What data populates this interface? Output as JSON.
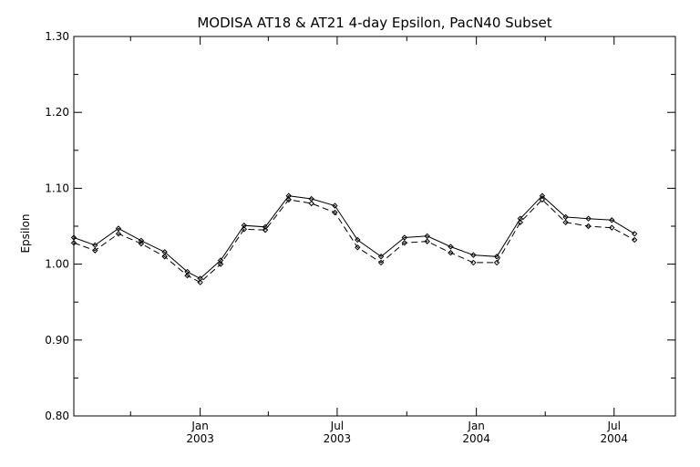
{
  "chart_data": {
    "type": "line",
    "title": "MODISA AT18 & AT21 4-day Epsilon, PacN40 Subset",
    "xlabel": "",
    "ylabel": "Epsilon",
    "xlim": [
      "2002-07-18",
      "2004-09-20"
    ],
    "ylim": [
      0.8,
      1.3
    ],
    "yticks": [
      {
        "value": 0.8,
        "label": "0.80"
      },
      {
        "value": 0.9,
        "label": "0.90"
      },
      {
        "value": 1.0,
        "label": "1.00"
      },
      {
        "value": 1.1,
        "label": "1.10"
      },
      {
        "value": 1.2,
        "label": "1.20"
      },
      {
        "value": 1.3,
        "label": "1.30"
      }
    ],
    "xticks_major": [
      {
        "date": "2003-01-01",
        "label": "Jan",
        "year": "2003"
      },
      {
        "date": "2003-07-01",
        "label": "Jul",
        "year": "2003"
      },
      {
        "date": "2004-01-01",
        "label": "Jan",
        "year": "2004"
      },
      {
        "date": "2004-07-01",
        "label": "Jul",
        "year": "2004"
      }
    ],
    "xticks_minor": [
      "2002-10-01",
      "2003-04-01",
      "2003-10-01",
      "2004-04-01"
    ],
    "grid": false,
    "legend": "none",
    "series": [
      {
        "style": "solid",
        "color": "#000000",
        "points": [
          [
            "2002-07-18",
            1.035
          ],
          [
            "2002-08-15",
            1.025
          ],
          [
            "2002-09-15",
            1.047
          ],
          [
            "2002-10-15",
            1.031
          ],
          [
            "2002-11-15",
            1.016
          ],
          [
            "2002-12-15",
            0.99
          ],
          [
            "2003-01-01",
            0.981
          ],
          [
            "2003-01-28",
            1.005
          ],
          [
            "2003-02-28",
            1.051
          ],
          [
            "2003-03-28",
            1.049
          ],
          [
            "2003-04-28",
            1.09
          ],
          [
            "2003-05-28",
            1.086
          ],
          [
            "2003-06-28",
            1.077
          ],
          [
            "2003-07-28",
            1.032
          ],
          [
            "2003-08-28",
            1.01
          ],
          [
            "2003-09-28",
            1.035
          ],
          [
            "2003-10-28",
            1.037
          ],
          [
            "2003-11-28",
            1.023
          ],
          [
            "2003-12-28",
            1.012
          ],
          [
            "2004-01-28",
            1.01
          ],
          [
            "2004-02-28",
            1.06
          ],
          [
            "2004-03-28",
            1.09
          ],
          [
            "2004-04-28",
            1.062
          ],
          [
            "2004-05-28",
            1.06
          ],
          [
            "2004-06-28",
            1.058
          ],
          [
            "2004-07-28",
            1.04
          ]
        ]
      },
      {
        "style": "dashed",
        "color": "#000000",
        "points": [
          [
            "2002-07-18",
            1.028
          ],
          [
            "2002-08-15",
            1.018
          ],
          [
            "2002-09-15",
            1.04
          ],
          [
            "2002-10-15",
            1.027
          ],
          [
            "2002-11-15",
            1.01
          ],
          [
            "2002-12-15",
            0.985
          ],
          [
            "2003-01-01",
            0.976
          ],
          [
            "2003-01-28",
            1.0
          ],
          [
            "2003-02-28",
            1.046
          ],
          [
            "2003-03-28",
            1.045
          ],
          [
            "2003-04-28",
            1.085
          ],
          [
            "2003-05-28",
            1.08
          ],
          [
            "2003-06-28",
            1.068
          ],
          [
            "2003-07-28",
            1.022
          ],
          [
            "2003-08-28",
            1.002
          ],
          [
            "2003-09-28",
            1.028
          ],
          [
            "2003-10-28",
            1.03
          ],
          [
            "2003-11-28",
            1.015
          ],
          [
            "2003-12-28",
            1.002
          ],
          [
            "2004-01-28",
            1.002
          ],
          [
            "2004-02-28",
            1.055
          ],
          [
            "2004-03-28",
            1.085
          ],
          [
            "2004-04-28",
            1.055
          ],
          [
            "2004-05-28",
            1.05
          ],
          [
            "2004-06-28",
            1.048
          ],
          [
            "2004-07-28",
            1.032
          ]
        ]
      }
    ]
  }
}
